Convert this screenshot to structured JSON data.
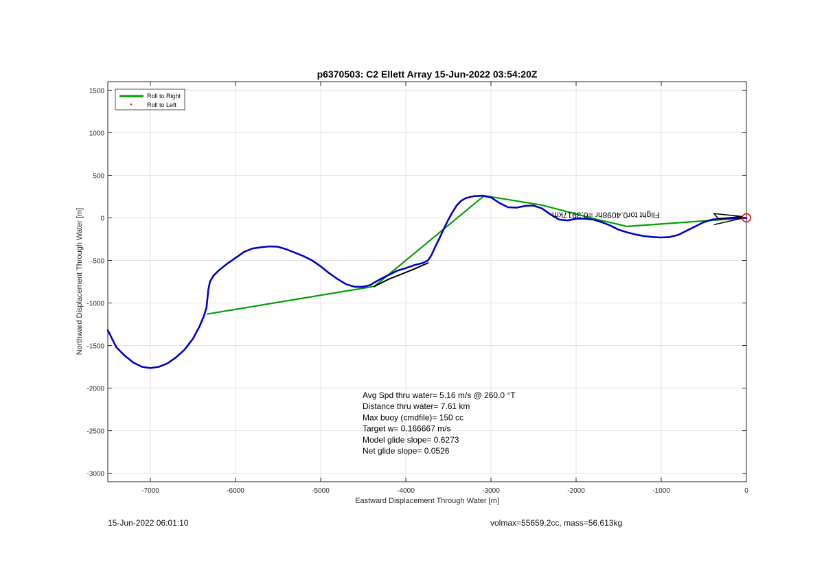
{
  "chart_data": {
    "type": "line",
    "title": "p6370503: C2 Ellett Array 15-Jun-2022 03:54:20Z",
    "xlabel": "Eastward Displacement Through Water [m]",
    "ylabel": "Northward Displacement Through Water [m]",
    "xlim": [
      -7500,
      0
    ],
    "ylim": [
      -3100,
      1600
    ],
    "xticks": [
      -7000,
      -6000,
      -5000,
      -4000,
      -3000,
      -2000,
      -1000,
      0
    ],
    "yticks": [
      -3000,
      -2500,
      -2000,
      -1500,
      -1000,
      -500,
      0,
      500,
      1000,
      1500
    ],
    "grid": true,
    "legend": {
      "placement": "top-left",
      "entries": [
        "Roll to Right",
        "Roll to Left"
      ]
    },
    "series": [
      {
        "name": "Roll to Right",
        "color": "#00a000",
        "x": [
          -6330,
          -4370,
          -3080,
          -2400,
          -1750,
          -1400,
          0
        ],
        "y": [
          -1130,
          -805,
          260,
          150,
          -20,
          -100,
          0
        ]
      },
      {
        "name": "Roll to Left",
        "color": "#ff0000",
        "marker": "dot",
        "x": [],
        "y": []
      },
      {
        "color": "#0000c8",
        "x": [
          -7500,
          -7400,
          -7300,
          -7200,
          -7100,
          -7000,
          -6900,
          -6800,
          -6700,
          -6600,
          -6500,
          -6420,
          -6370,
          -6340,
          -6320,
          -6300,
          -6260,
          -6200,
          -6100,
          -6000,
          -5900,
          -5800,
          -5700,
          -5600,
          -5500,
          -5400,
          -5300,
          -5200,
          -5100,
          -5000,
          -4900,
          -4800,
          -4700,
          -4600,
          -4500,
          -4420,
          -4370,
          -4300,
          -4200,
          -4100,
          -4000,
          -3900,
          -3800,
          -3740,
          -3700,
          -3650,
          -3600,
          -3550,
          -3500,
          -3450,
          -3400,
          -3350,
          -3300,
          -3200,
          -3100,
          -3000,
          -2900,
          -2800,
          -2700,
          -2600,
          -2500,
          -2400,
          -2300,
          -2200,
          -2100,
          -2000,
          -1900,
          -1800,
          -1700,
          -1600,
          -1500,
          -1400,
          -1300,
          -1200,
          -1100,
          -1000,
          -900,
          -800,
          -700,
          -600,
          -500,
          -400,
          -300,
          -200,
          -100,
          0
        ],
        "y": [
          -1320,
          -1520,
          -1620,
          -1700,
          -1750,
          -1765,
          -1750,
          -1710,
          -1640,
          -1550,
          -1420,
          -1270,
          -1150,
          -1050,
          -850,
          -750,
          -680,
          -620,
          -540,
          -470,
          -400,
          -360,
          -345,
          -335,
          -340,
          -370,
          -410,
          -450,
          -500,
          -570,
          -650,
          -720,
          -780,
          -810,
          -810,
          -790,
          -760,
          -720,
          -670,
          -620,
          -590,
          -555,
          -530,
          -500,
          -440,
          -330,
          -230,
          -120,
          -20,
          70,
          150,
          200,
          230,
          255,
          260,
          240,
          175,
          125,
          120,
          140,
          145,
          110,
          40,
          -20,
          -30,
          -10,
          -10,
          -20,
          -50,
          -90,
          -140,
          -170,
          -195,
          -215,
          -225,
          -230,
          -225,
          -200,
          -150,
          -100,
          -50,
          -20,
          -10,
          -5,
          0,
          0
        ]
      },
      {
        "color": "#000000",
        "x": [
          -3740,
          -3900,
          -4000,
          -4200,
          -4370
        ],
        "y": [
          -530,
          -600,
          -640,
          -720,
          -805
        ]
      }
    ],
    "annotations": [
      "Avg Spd thru water=  5.16 m/s @ 260.0 °T",
      "Distance thru water=  7.61 km",
      "Max buoy (cmdfile)= 150 cc",
      "Target w= 0.166667 m/s",
      "Model glide slope= 0.6273",
      "Net glide slope= 0.0526"
    ],
    "mirrored_label": "Flight tor0.4098hr =0.3917km"
  },
  "footer": {
    "timestamp": "15-Jun-2022 06:01:10",
    "params": "volmax=55659.2cc, mass=56.613kg"
  }
}
